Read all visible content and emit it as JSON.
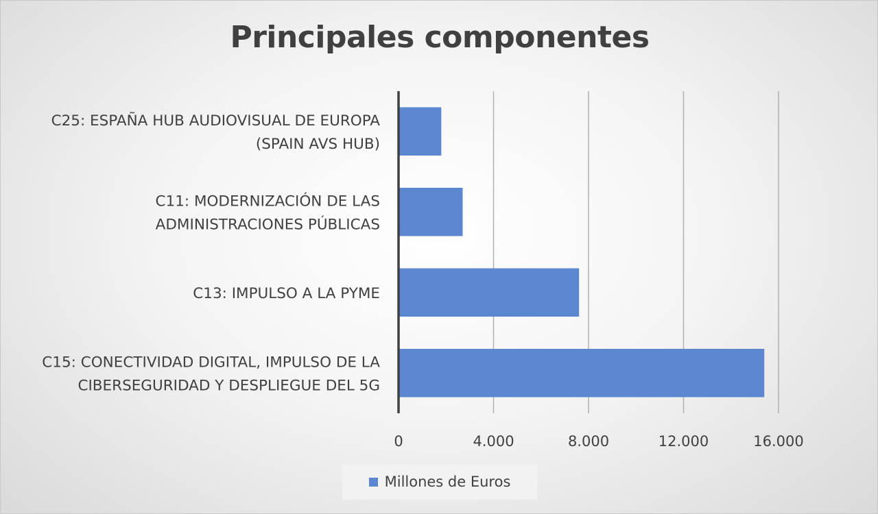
{
  "chart_data": {
    "type": "bar",
    "orientation": "horizontal",
    "title": "Principales componentes",
    "categories": [
      [
        "C25: ESPAÑA HUB AUDIOVISUAL DE EUROPA",
        "(SPAIN AVS HUB)"
      ],
      [
        "C11: MODERNIZACIÓN DE LAS",
        "ADMINISTRACIONES PÚBLICAS"
      ],
      [
        "C13: IMPULSO A LA PYME"
      ],
      [
        "C15: CONECTIVIDAD DIGITAL, IMPULSO DE LA",
        "CIBERSEGURIDAD Y DESPLIEGUE DEL 5G"
      ]
    ],
    "series": [
      {
        "name": "Millones de Euros",
        "values": [
          1800,
          2700,
          7600,
          15400
        ]
      }
    ],
    "xlim": [
      0,
      16000
    ],
    "xticks": [
      0,
      4000,
      8000,
      12000,
      16000
    ],
    "xtick_labels": [
      "0",
      "4.000",
      "8.000",
      "12.000",
      "16.000"
    ],
    "grid": "vertical",
    "legend_position": "bottom",
    "bar_color": "#5b86d0"
  }
}
